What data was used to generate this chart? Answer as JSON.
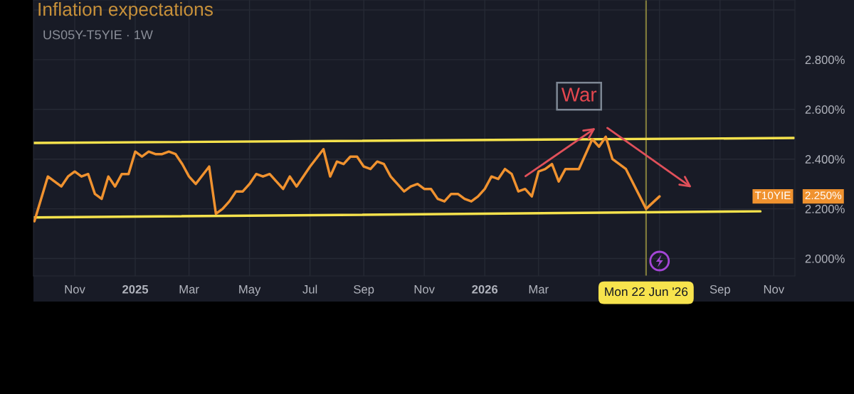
{
  "chart_data": {
    "type": "line",
    "title": "Inflation expectations",
    "subtitle": "US05Y-T5YIE · 1W",
    "series": [
      {
        "name": "T10YIE",
        "color": "#f0922f",
        "x": [
          "2024-09-23",
          "2024-10-07",
          "2024-10-21",
          "2024-10-28",
          "2024-11-04",
          "2024-11-11",
          "2024-11-18",
          "2024-11-25",
          "2024-12-02",
          "2024-12-09",
          "2024-12-16",
          "2024-12-23",
          "2024-12-30",
          "2025-01-06",
          "2025-01-13",
          "2025-01-20",
          "2025-01-27",
          "2025-02-03",
          "2025-02-10",
          "2025-02-17",
          "2025-02-24",
          "2025-03-03",
          "2025-03-10",
          "2025-03-24",
          "2025-03-31",
          "2025-04-07",
          "2025-04-14",
          "2025-04-21",
          "2025-04-28",
          "2025-05-05",
          "2025-05-12",
          "2025-05-19",
          "2025-05-26",
          "2025-06-02",
          "2025-06-09",
          "2025-06-16",
          "2025-06-23",
          "2025-06-30",
          "2025-07-07",
          "2025-07-21",
          "2025-07-28",
          "2025-08-04",
          "2025-08-11",
          "2025-08-18",
          "2025-08-25",
          "2025-09-01",
          "2025-09-08",
          "2025-09-15",
          "2025-09-22",
          "2025-09-29",
          "2025-10-06",
          "2025-10-13",
          "2025-10-20",
          "2025-10-27",
          "2025-11-03",
          "2025-11-10",
          "2025-11-17",
          "2025-11-24",
          "2025-12-01",
          "2025-12-08",
          "2025-12-15",
          "2025-12-22",
          "2025-12-29",
          "2026-01-05",
          "2026-01-12",
          "2026-01-19",
          "2026-01-26",
          "2026-02-02",
          "2026-02-09",
          "2026-02-16",
          "2026-02-23",
          "2026-03-02",
          "2026-03-09",
          "2026-03-16",
          "2026-03-23",
          "2026-03-30",
          "2026-04-06",
          "2026-04-13",
          "2026-04-27",
          "2026-05-04",
          "2026-05-11",
          "2026-05-18",
          "2026-06-01",
          "2026-06-22",
          "2026-07-06"
        ],
        "values": [
          2.15,
          2.33,
          2.29,
          2.33,
          2.35,
          2.33,
          2.34,
          2.26,
          2.24,
          2.33,
          2.29,
          2.34,
          2.34,
          2.43,
          2.41,
          2.43,
          2.42,
          2.42,
          2.43,
          2.42,
          2.38,
          2.33,
          2.3,
          2.37,
          2.18,
          2.2,
          2.23,
          2.27,
          2.27,
          2.3,
          2.34,
          2.33,
          2.34,
          2.31,
          2.28,
          2.33,
          2.29,
          2.33,
          2.37,
          2.44,
          2.33,
          2.39,
          2.38,
          2.41,
          2.41,
          2.37,
          2.36,
          2.39,
          2.38,
          2.33,
          2.3,
          2.27,
          2.29,
          2.3,
          2.28,
          2.28,
          2.24,
          2.23,
          2.26,
          2.26,
          2.24,
          2.23,
          2.25,
          2.28,
          2.33,
          2.32,
          2.36,
          2.34,
          2.27,
          2.28,
          2.25,
          2.35,
          2.36,
          2.38,
          2.31,
          2.36,
          2.36,
          2.36,
          2.48,
          2.45,
          2.49,
          2.4,
          2.36,
          2.2,
          2.25
        ]
      },
      {
        "type": "line",
        "color": "#f5e24c",
        "x": [
          "2024-09-22",
          "2026-11-23"
        ],
        "values": [
          2.465,
          2.485
        ]
      },
      {
        "type": "line",
        "color": "#f5e24c",
        "x": [
          "2024-09-22",
          "2026-10-19"
        ],
        "values": [
          2.165,
          2.19
        ]
      }
    ],
    "xlim": [
      "2024-09-22",
      "2026-11-24"
    ],
    "xticks": [
      {
        "value": "2024-11-04",
        "label": "Nov"
      },
      {
        "value": "2025-01-06",
        "label": "2025"
      },
      {
        "value": "2025-03-03",
        "label": "Mar"
      },
      {
        "value": "2025-05-05",
        "label": "May"
      },
      {
        "value": "2025-07-07",
        "label": "Jul"
      },
      {
        "value": "2025-09-01",
        "label": "Sep"
      },
      {
        "value": "2025-11-03",
        "label": "Nov"
      },
      {
        "value": "2026-01-05",
        "label": "2026"
      },
      {
        "value": "2026-03-02",
        "label": "Mar"
      },
      {
        "value": "2026-05-04",
        "label": null
      },
      {
        "value": "2026-07-06",
        "label": null
      },
      {
        "value": "2026-09-07",
        "label": "Sep"
      },
      {
        "value": "2026-11-02",
        "label": "Nov"
      }
    ],
    "ylim": [
      1.93,
      3.04
    ],
    "yticks": [
      {
        "value": 2.0,
        "label": "2.000%"
      },
      {
        "value": 2.2,
        "label": "2.200%"
      },
      {
        "value": 2.4,
        "label": "2.400%"
      },
      {
        "value": 2.6,
        "label": "2.600%"
      },
      {
        "value": 2.8,
        "label": "2.800%"
      },
      {
        "value": 3.0,
        "label": null
      }
    ],
    "ref_lines": [
      {
        "axis": "x",
        "value": "2026-06-22",
        "label": "Mon 22 Jun '26",
        "color": "#7f7a3c"
      }
    ],
    "annotations": [
      {
        "text": "War",
        "x": "2026-05-11",
        "y": 2.49
      },
      "2.250%"
    ],
    "grid": true
  }
}
